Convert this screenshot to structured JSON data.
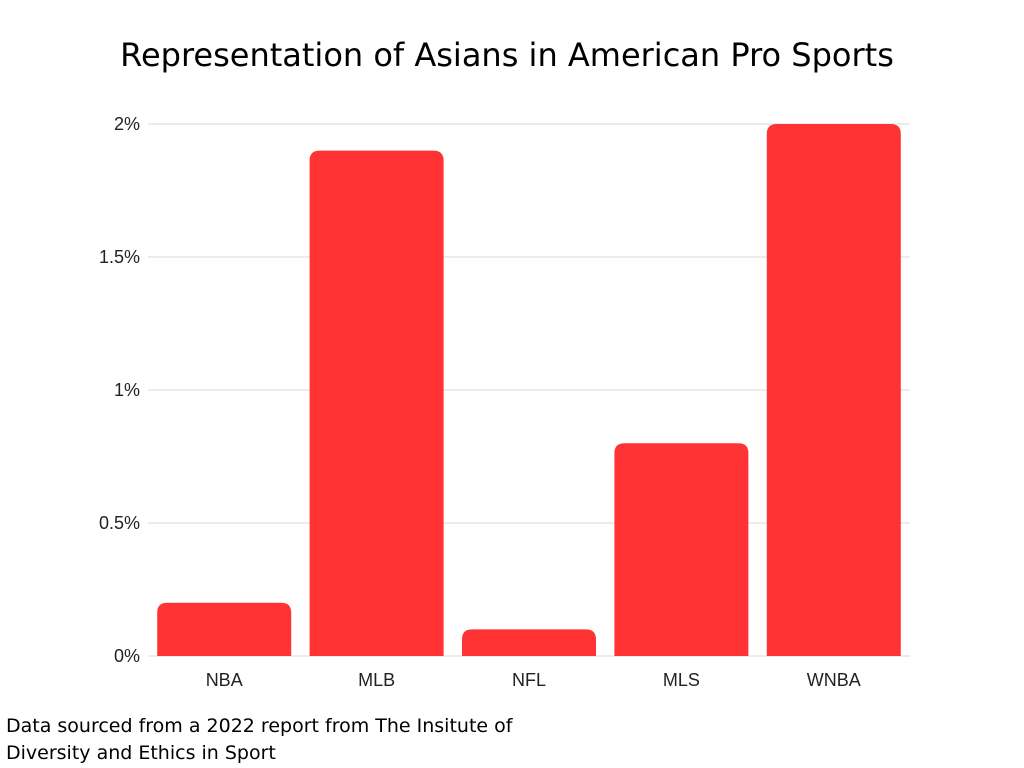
{
  "chart_data": {
    "type": "bar",
    "title": "Representation of Asians in American Pro Sports",
    "categories": [
      "NBA",
      "MLB",
      "NFL",
      "MLS",
      "WNBA"
    ],
    "values": [
      0.2,
      1.9,
      0.1,
      0.8,
      2.0
    ],
    "unit": "%",
    "xlabel": "",
    "ylabel": "",
    "ylim": [
      0,
      2
    ],
    "yticks": [
      0,
      0.5,
      1,
      1.5,
      2
    ],
    "ytick_labels": [
      "0%",
      "0.5%",
      "1%",
      "1.5%",
      "2%"
    ],
    "grid": true,
    "bar_color": "#ff3333",
    "grid_color": "#d9d9d9"
  },
  "footnote": {
    "line1": "Data sourced from a 2022 report from The Insitute of",
    "line2": "Diversity and Ethics in Sport"
  }
}
